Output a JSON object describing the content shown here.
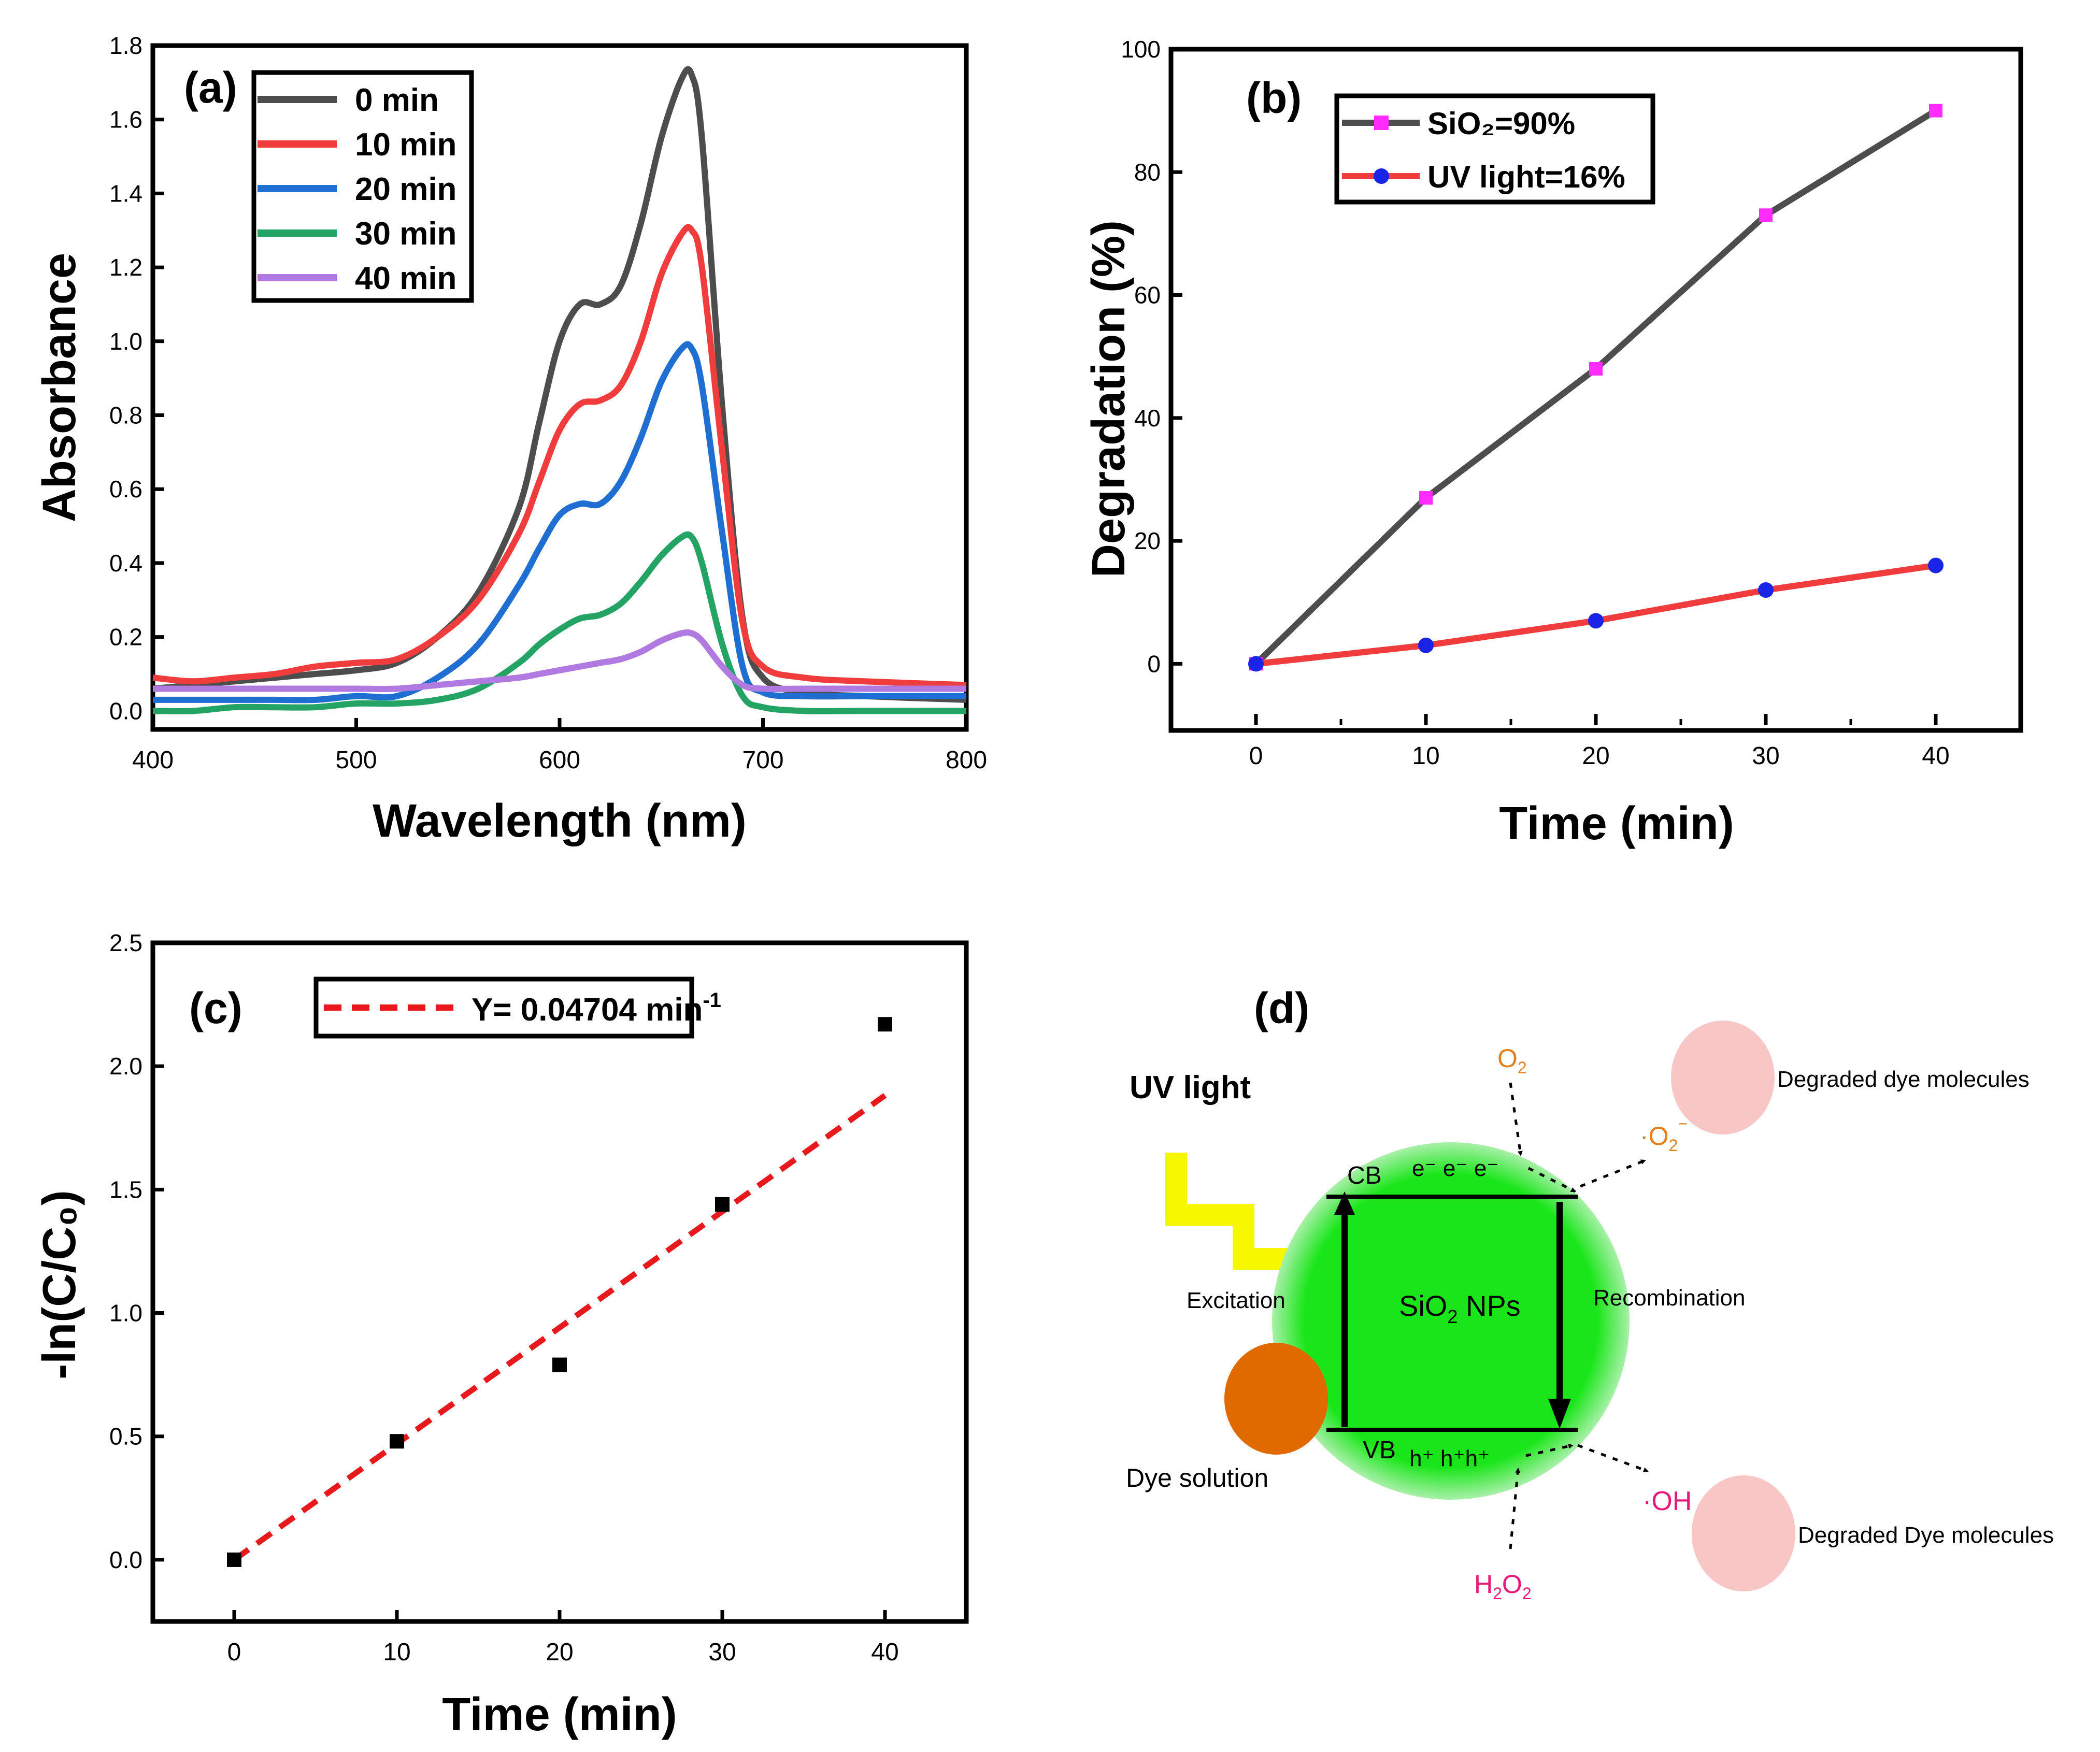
{
  "chart_data": [
    {
      "panel": "(a)",
      "type": "line",
      "xlabel": "Wavelength (nm)",
      "ylabel": "Absorbance",
      "xlim": [
        400,
        800
      ],
      "ylim": [
        -0.05,
        1.8
      ],
      "xticks": [
        "400",
        "500",
        "600",
        "700",
        "800"
      ],
      "yticks": [
        "0.0",
        "0.2",
        "0.4",
        "0.6",
        "0.8",
        "1.0",
        "1.2",
        "1.4",
        "1.6",
        "1.8"
      ],
      "x": [
        400,
        420,
        440,
        460,
        480,
        500,
        520,
        540,
        560,
        580,
        590,
        600,
        610,
        620,
        630,
        640,
        650,
        660,
        665,
        670,
        680,
        690,
        700,
        720,
        750,
        800
      ],
      "series": [
        {
          "name": "0 min",
          "color": "#4d4d4d",
          "values": [
            0.06,
            0.07,
            0.08,
            0.09,
            0.1,
            0.11,
            0.13,
            0.2,
            0.32,
            0.55,
            0.78,
            1.0,
            1.1,
            1.1,
            1.15,
            1.32,
            1.55,
            1.71,
            1.72,
            1.55,
            0.82,
            0.25,
            0.09,
            0.05,
            0.04,
            0.03
          ]
        },
        {
          "name": "10 min",
          "color": "#f03c3c",
          "values": [
            0.09,
            0.08,
            0.09,
            0.1,
            0.12,
            0.13,
            0.14,
            0.2,
            0.3,
            0.48,
            0.62,
            0.76,
            0.83,
            0.84,
            0.88,
            1.0,
            1.18,
            1.29,
            1.3,
            1.2,
            0.7,
            0.24,
            0.12,
            0.09,
            0.08,
            0.07
          ]
        },
        {
          "name": "20 min",
          "color": "#1e6fd1",
          "values": [
            0.03,
            0.03,
            0.03,
            0.03,
            0.03,
            0.04,
            0.04,
            0.09,
            0.18,
            0.34,
            0.44,
            0.53,
            0.56,
            0.56,
            0.62,
            0.74,
            0.89,
            0.98,
            0.98,
            0.88,
            0.48,
            0.12,
            0.05,
            0.04,
            0.04,
            0.04
          ]
        },
        {
          "name": "30 min",
          "color": "#23a364",
          "values": [
            0.0,
            0.0,
            0.01,
            0.01,
            0.01,
            0.02,
            0.02,
            0.03,
            0.06,
            0.13,
            0.18,
            0.22,
            0.25,
            0.26,
            0.29,
            0.35,
            0.42,
            0.47,
            0.47,
            0.4,
            0.18,
            0.04,
            0.01,
            0.0,
            0.0,
            0.0
          ]
        },
        {
          "name": "40 min",
          "color": "#b07ae0",
          "values": [
            0.06,
            0.06,
            0.06,
            0.06,
            0.06,
            0.06,
            0.06,
            0.07,
            0.08,
            0.09,
            0.1,
            0.11,
            0.12,
            0.13,
            0.14,
            0.16,
            0.19,
            0.21,
            0.21,
            0.19,
            0.12,
            0.07,
            0.06,
            0.06,
            0.06,
            0.06
          ]
        }
      ]
    },
    {
      "panel": "(b)",
      "type": "line",
      "xlabel": "Time (min)",
      "ylabel": "Degradation (%)",
      "xlim": [
        -5,
        45
      ],
      "ylim": [
        -10,
        100
      ],
      "xticks": [
        "0",
        "10",
        "20",
        "30",
        "40"
      ],
      "yticks": [
        "0",
        "20",
        "40",
        "60",
        "80",
        "100"
      ],
      "x": [
        0,
        10,
        20,
        30,
        40
      ],
      "series": [
        {
          "name": "SiO₂=90%",
          "line_color": "#4d4d4d",
          "marker": "square",
          "marker_color": "#ff2bff",
          "values": [
            0,
            27,
            48,
            73,
            90
          ]
        },
        {
          "name": "UV light=16%",
          "line_color": "#f03c3c",
          "marker": "circle",
          "marker_color": "#1a24e6",
          "values": [
            0,
            3,
            7,
            12,
            16
          ]
        }
      ]
    },
    {
      "panel": "(c)",
      "type": "scatter",
      "xlabel": "Time (min)",
      "ylabel": "-ln(C/C₀)",
      "xlim": [
        -5,
        45
      ],
      "ylim": [
        -0.25,
        2.5
      ],
      "xticks": [
        "0",
        "10",
        "20",
        "30",
        "40"
      ],
      "yticks": [
        "0.0",
        "0.5",
        "1.0",
        "1.5",
        "2.0",
        "2.5"
      ],
      "x": [
        0,
        10,
        20,
        30,
        40
      ],
      "values": [
        0.0,
        0.48,
        0.79,
        1.44,
        2.17
      ],
      "fit": {
        "label": "Y= 0.04704 min",
        "superscript": "-1",
        "slope": 0.04704,
        "color": "#e8191c"
      }
    }
  ],
  "diagram": {
    "panel": "(d)",
    "uv_label": "UV light",
    "o2": "O",
    "o2_sub": "2",
    "superoxide": "·O",
    "superoxide_sub": "2",
    "superoxide_sup": "−",
    "degraded_top": "Degraded dye molecules",
    "cb": "CB",
    "electrons": "e⁻ e⁻ e⁻",
    "excitation": "Excitation",
    "nps": "SiO",
    "nps_sub": "2",
    "nps_suffix": " NPs",
    "recombination": "Recombination",
    "dye_solution": "Dye solution",
    "vb": "VB",
    "holes": "h⁺ h⁺h⁺",
    "hydroxyl": "·OH",
    "h2o2_h": "H",
    "h2o2_sub1": "2",
    "h2o2_o": "O",
    "h2o2_sub2": "2",
    "degraded_bottom": "Degraded Dye molecules"
  }
}
